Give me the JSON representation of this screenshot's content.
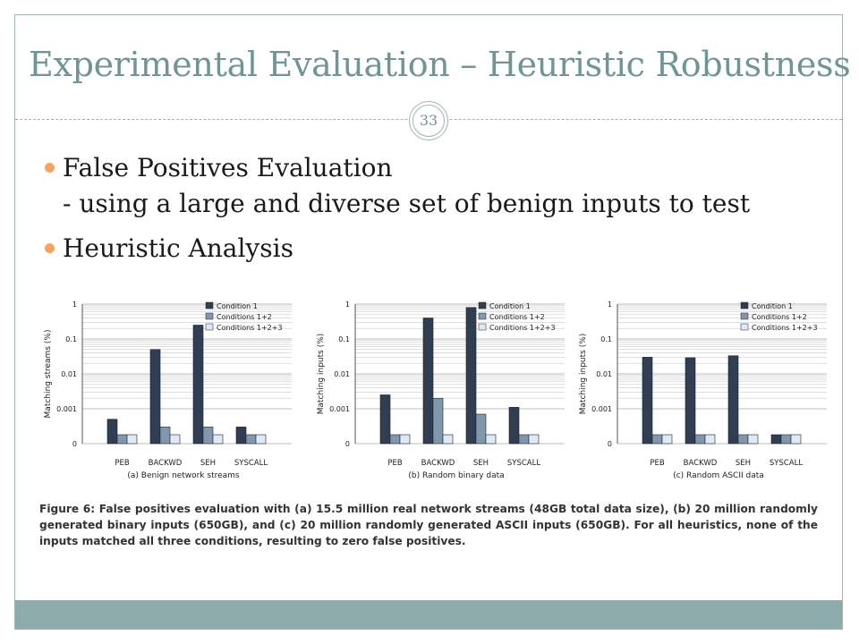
{
  "slide": {
    "title": "Experimental Evaluation – Heuristic Robustness",
    "page_number": "33",
    "bullets": [
      {
        "text": "False Positives Evaluation",
        "sub": "- using a large and diverse set of benign inputs to test"
      },
      {
        "text": "Heuristic Analysis",
        "sub": ""
      }
    ],
    "caption": "Figure 6:  False positives evaluation with (a) 15.5 million real network streams (48GB total data size), (b) 20 million randomly generated binary inputs (650GB), and (c) 20 million randomly generated ASCII inputs (650GB). For all heuristics, none of the inputs matched all three conditions, resulting to zero false positives.",
    "colors": {
      "title": "#6f9597",
      "bullet": "#f4a460",
      "frame": "#9fb4b5",
      "footer": "#8eabac"
    }
  },
  "chart_data": [
    {
      "type": "bar",
      "xlabel": "(a) Benign network streams",
      "ylabel": "Matching streams (%)",
      "y_scale": "log",
      "yticks": [
        "0",
        "0.001",
        "0.01",
        "0.1",
        "1"
      ],
      "categories": [
        "PEB",
        "BACKWD",
        "SEH",
        "SYSCALL"
      ],
      "series": [
        {
          "name": "Condition 1",
          "values": [
            0.0005,
            0.05,
            0.25,
            0.0003
          ],
          "color": "#2f3e52"
        },
        {
          "name": "Conditions 1+2",
          "values": [
            0,
            0.0003,
            0.0003,
            0
          ],
          "color": "#8197ad"
        },
        {
          "name": "Conditions 1+2+3",
          "values": [
            0,
            0,
            0,
            0
          ],
          "color": "#dde9f5"
        }
      ]
    },
    {
      "type": "bar",
      "xlabel": "(b) Random binary data",
      "ylabel": "Matching inputs (%)",
      "y_scale": "log",
      "yticks": [
        "0",
        "0.001",
        "0.01",
        "0.1",
        "1"
      ],
      "categories": [
        "PEB",
        "BACKWD",
        "SEH",
        "SYSCALL"
      ],
      "series": [
        {
          "name": "Condition 1",
          "values": [
            0.0025,
            0.4,
            0.8,
            0.0011
          ],
          "color": "#2f3e52"
        },
        {
          "name": "Conditions 1+2",
          "values": [
            0,
            0.002,
            0.0007,
            0
          ],
          "color": "#8197ad"
        },
        {
          "name": "Conditions 1+2+3",
          "values": [
            0,
            0,
            0,
            0
          ],
          "color": "#dde9f5"
        }
      ]
    },
    {
      "type": "bar",
      "xlabel": "(c) Random ASCII data",
      "ylabel": "Matching inputs (%)",
      "y_scale": "log",
      "yticks": [
        "0",
        "0.001",
        "0.01",
        "0.1",
        "1"
      ],
      "categories": [
        "PEB",
        "BACKWD",
        "SEH",
        "SYSCALL"
      ],
      "series": [
        {
          "name": "Condition 1",
          "values": [
            0.03,
            0.029,
            0.033,
            0
          ],
          "color": "#2f3e52"
        },
        {
          "name": "Conditions 1+2",
          "values": [
            0,
            0,
            0,
            0
          ],
          "color": "#8197ad"
        },
        {
          "name": "Conditions 1+2+3",
          "values": [
            0,
            0,
            0,
            0
          ],
          "color": "#dde9f5"
        }
      ]
    }
  ]
}
